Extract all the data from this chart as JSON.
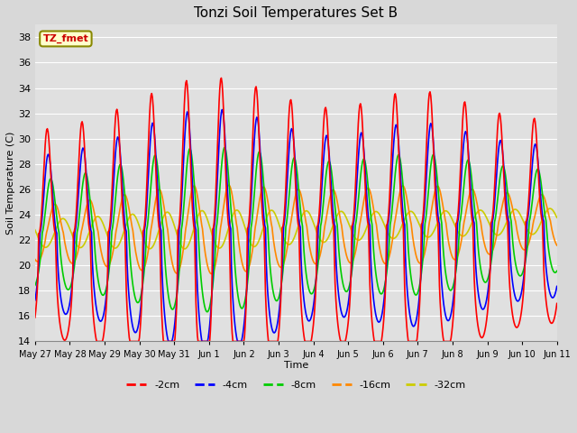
{
  "title": "Tonzi Soil Temperatures Set B",
  "xlabel": "Time",
  "ylabel": "Soil Temperature (C)",
  "ylim": [
    14,
    39
  ],
  "yticks": [
    14,
    16,
    18,
    20,
    22,
    24,
    26,
    28,
    30,
    32,
    34,
    36,
    38
  ],
  "x_tick_labels": [
    "May 27",
    "May 28",
    "May 29",
    "May 30",
    "May 31",
    "Jun 1",
    "Jun 2",
    "Jun 3",
    "Jun 4",
    "Jun 5",
    "Jun 6",
    "Jun 7",
    "Jun 8",
    "Jun 9",
    "Jun 10",
    "Jun 11"
  ],
  "series": {
    "-2cm": {
      "color": "#ff0000",
      "linewidth": 1.2
    },
    "-4cm": {
      "color": "#0000ff",
      "linewidth": 1.2
    },
    "-8cm": {
      "color": "#00cc00",
      "linewidth": 1.2
    },
    "-16cm": {
      "color": "#ff8800",
      "linewidth": 1.2
    },
    "-32cm": {
      "color": "#cccc00",
      "linewidth": 1.2
    }
  },
  "background_color": "#d8d8d8",
  "plot_background": "#e0e0e0",
  "grid_color": "#ffffff",
  "annotation_text": "TZ_fmet",
  "annotation_bg": "#ffffcc",
  "annotation_border": "#888800"
}
